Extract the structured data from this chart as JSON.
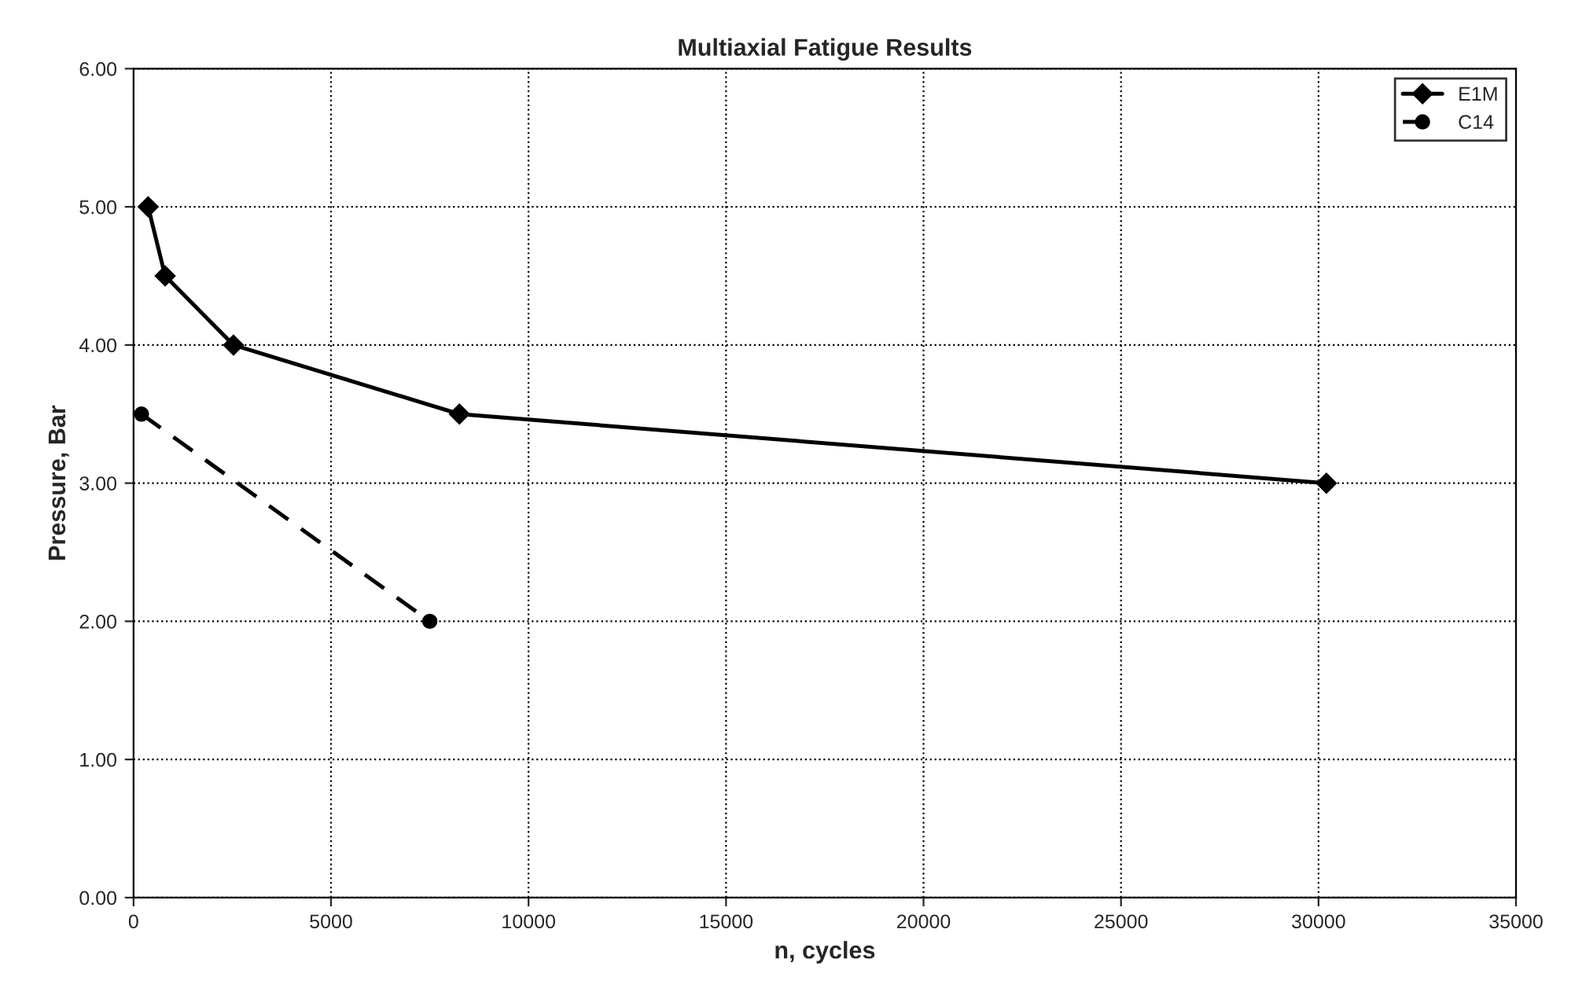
{
  "chart_data": {
    "type": "line",
    "title": "Multiaxial Fatigue Results",
    "xlabel": "n, cycles",
    "ylabel": "Pressure, Bar",
    "xlim": [
      0,
      35000
    ],
    "xticks": [
      0,
      5000,
      10000,
      15000,
      20000,
      25000,
      30000,
      35000
    ],
    "ylim": [
      0,
      6
    ],
    "yticks": [
      {
        "value": 0,
        "label": "0.00"
      },
      {
        "value": 1,
        "label": "1.00"
      },
      {
        "value": 2,
        "label": "2.00"
      },
      {
        "value": 3,
        "label": "3.00"
      },
      {
        "value": 4,
        "label": "4.00"
      },
      {
        "value": 5,
        "label": "5.00"
      },
      {
        "value": 6,
        "label": "6.00"
      }
    ],
    "grid": true,
    "legend": "top right",
    "series": [
      {
        "name": "E1M",
        "color": "#000000",
        "marker": "diamond",
        "line_style": "solid",
        "x": [
          370,
          800,
          2530,
          8250,
          30200
        ],
        "values": [
          5.0,
          4.5,
          4.0,
          3.5,
          3.0
        ]
      },
      {
        "name": "C14",
        "color": "#000000",
        "marker": "circle",
        "line_style": "dashed",
        "x": [
          200,
          7500
        ],
        "values": [
          3.5,
          2.0
        ]
      }
    ]
  }
}
